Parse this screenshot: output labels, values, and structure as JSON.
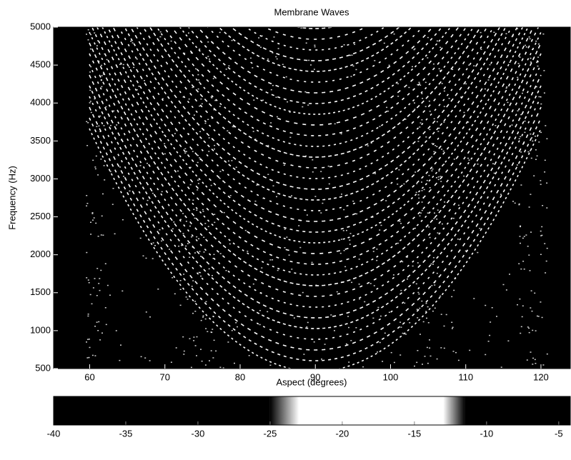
{
  "chart_data": {
    "type": "heatmap",
    "title": "Membrane Waves",
    "x_label": "Aspect (degrees)",
    "y_label": "Frequency (Hz)",
    "xlim": [
      55.2,
      123.9
    ],
    "xticks": [
      60,
      70,
      80,
      90,
      100,
      110,
      120
    ],
    "ylim": [
      500,
      5000
    ],
    "yticks": [
      500,
      1000,
      1500,
      2000,
      2500,
      3000,
      3500,
      4000,
      4500,
      5000
    ],
    "colorbar": {
      "lim": [
        -40,
        -4.2
      ],
      "ticks": [
        -40,
        -35,
        -30,
        -25,
        -20,
        -15,
        -10,
        -5
      ],
      "colormap": [
        {
          "value": -40,
          "color": "#000000"
        },
        {
          "value": -25,
          "color": "#000000"
        },
        {
          "value": -23,
          "color": "#ffffff"
        },
        {
          "value": -13,
          "color": "#ffffff"
        },
        {
          "value": -11.5,
          "color": "#000000"
        },
        {
          "value": -4.2,
          "color": "#000000"
        }
      ]
    }
  }
}
